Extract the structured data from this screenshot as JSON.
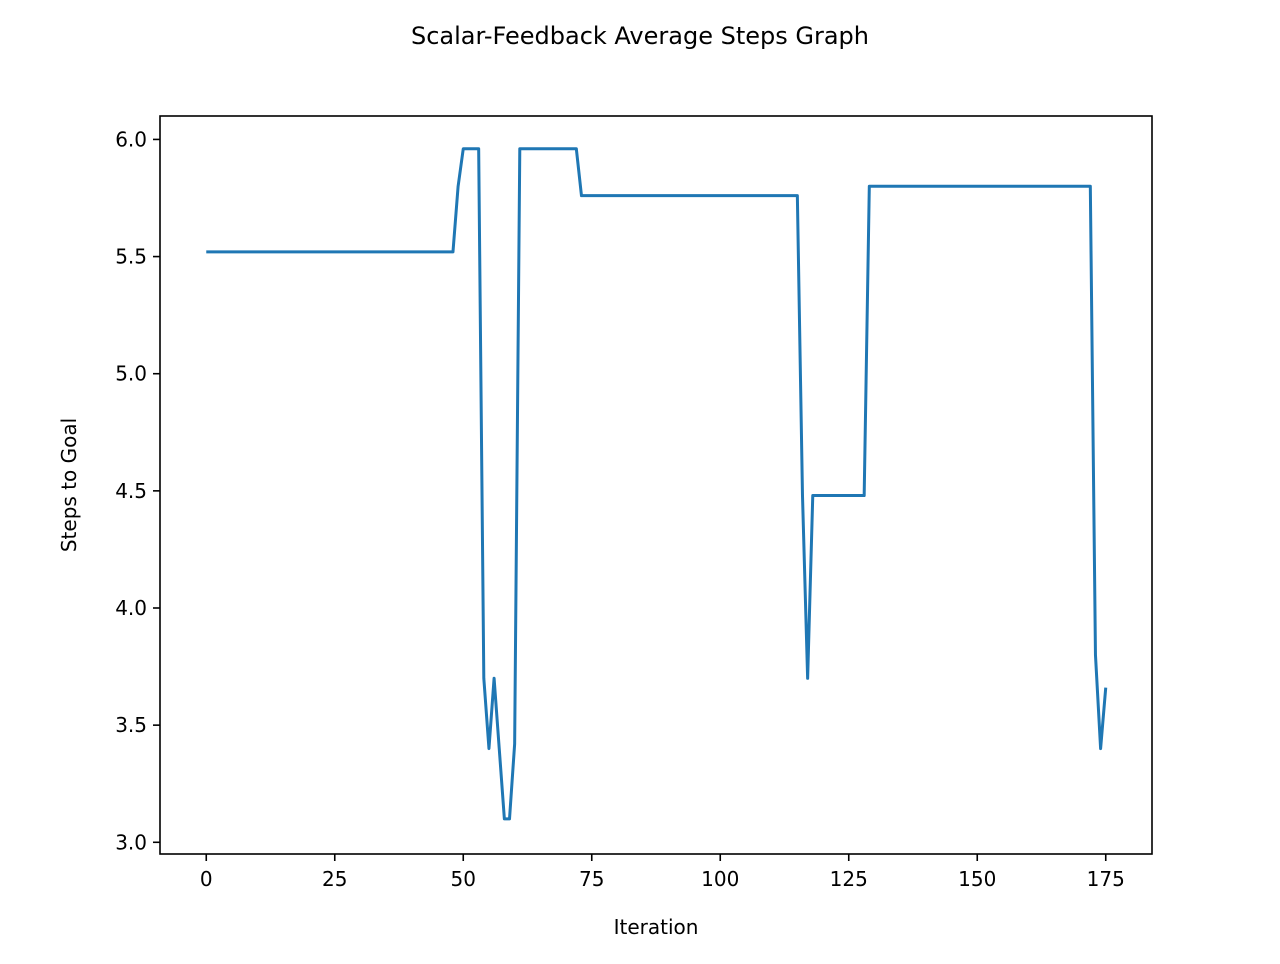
{
  "chart_data": {
    "type": "line",
    "title": "Scalar-Feedback Average Steps Graph",
    "xlabel": "Iteration",
    "ylabel": "Steps to Goal",
    "xlim": [
      -9,
      184
    ],
    "ylim": [
      2.95,
      6.1
    ],
    "x_ticks": [
      0,
      25,
      50,
      75,
      100,
      125,
      150,
      175
    ],
    "y_ticks": [
      3.0,
      3.5,
      4.0,
      4.5,
      5.0,
      5.5,
      6.0
    ],
    "x_tick_labels": [
      "0",
      "25",
      "50",
      "75",
      "100",
      "125",
      "150",
      "175"
    ],
    "y_tick_labels": [
      "3.0",
      "3.5",
      "4.0",
      "4.5",
      "5.0",
      "5.5",
      "6.0"
    ],
    "grid": false,
    "series": [
      {
        "color": "#1f77b4",
        "x": [
          0,
          48,
          49,
          50,
          53,
          54,
          55,
          56,
          57,
          58,
          59,
          60,
          61,
          72,
          73,
          115,
          116,
          117,
          118,
          128,
          129,
          172,
          173,
          174,
          175
        ],
        "y": [
          5.52,
          5.52,
          5.8,
          5.96,
          5.96,
          3.7,
          3.4,
          3.7,
          3.4,
          3.1,
          3.1,
          3.42,
          5.96,
          5.96,
          5.76,
          5.76,
          4.48,
          3.7,
          4.48,
          4.48,
          5.8,
          5.8,
          3.8,
          3.4,
          3.66
        ]
      }
    ]
  }
}
